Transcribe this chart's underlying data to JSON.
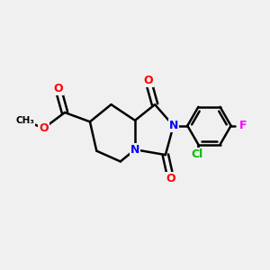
{
  "bg_color": "#f0f0f0",
  "bond_color": "#000000",
  "bond_width": 1.8,
  "atom_colors": {
    "N": "#0000ff",
    "O": "#ff0000",
    "Cl": "#00bb00",
    "F": "#ff00ff",
    "C": "#000000"
  }
}
